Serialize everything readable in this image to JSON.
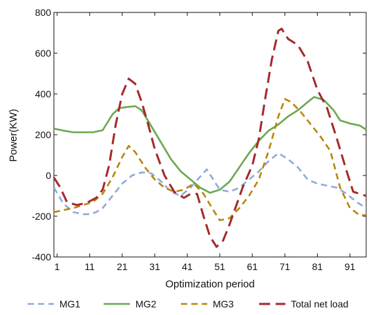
{
  "chart_data": {
    "type": "line",
    "xlabel": "Optimization period",
    "ylabel": "Power(KW)",
    "xlim": [
      0,
      96
    ],
    "ylim": [
      -400,
      800
    ],
    "x_ticks": [
      1,
      11,
      21,
      31,
      41,
      51,
      61,
      71,
      81,
      91
    ],
    "y_ticks": [
      -400,
      -200,
      0,
      200,
      400,
      600,
      800
    ],
    "grid": false,
    "legend_position": "bottom",
    "series": [
      {
        "name": "MG1",
        "color": "#8faadc",
        "dash": "dashed",
        "x": [
          0,
          3,
          6,
          9,
          11,
          13,
          15,
          18,
          21,
          24,
          27,
          30,
          33,
          36,
          39,
          42,
          45,
          47,
          49,
          51,
          54,
          57,
          60,
          63,
          66,
          69,
          72,
          75,
          78,
          81,
          84,
          87,
          90,
          93,
          96
        ],
        "y": [
          -60,
          -140,
          -180,
          -190,
          -190,
          -180,
          -160,
          -100,
          -40,
          0,
          15,
          10,
          -30,
          -80,
          -100,
          -60,
          -5,
          30,
          -20,
          -70,
          -80,
          -60,
          -20,
          20,
          70,
          110,
          80,
          40,
          -20,
          -40,
          -50,
          -60,
          -90,
          -130,
          -160
        ]
      },
      {
        "name": "MG2",
        "color": "#6aa84f",
        "dash": "solid",
        "x": [
          0,
          3,
          6,
          9,
          12,
          15,
          18,
          20,
          22,
          25,
          27,
          30,
          33,
          36,
          39,
          42,
          45,
          48,
          51,
          54,
          57,
          60,
          63,
          66,
          69,
          72,
          75,
          78,
          80,
          83,
          86,
          88,
          91,
          94,
          96
        ],
        "y": [
          230,
          220,
          212,
          212,
          212,
          222,
          300,
          330,
          335,
          340,
          320,
          240,
          160,
          80,
          20,
          -20,
          -60,
          -85,
          -70,
          -30,
          40,
          110,
          170,
          220,
          250,
          290,
          320,
          360,
          385,
          370,
          320,
          270,
          255,
          245,
          225
        ]
      },
      {
        "name": "MG3",
        "color": "#b8860b",
        "dash": "dashed",
        "x": [
          0,
          3,
          6,
          9,
          12,
          15,
          18,
          21,
          23,
          25,
          28,
          31,
          34,
          37,
          40,
          43,
          46,
          49,
          51,
          54,
          57,
          60,
          63,
          66,
          69,
          71,
          73,
          76,
          79,
          82,
          85,
          88,
          91,
          94,
          96
        ],
        "y": [
          -180,
          -170,
          -160,
          -145,
          -130,
          -90,
          -10,
          90,
          145,
          115,
          40,
          -20,
          -60,
          -80,
          -70,
          -40,
          -90,
          -170,
          -220,
          -210,
          -160,
          -100,
          -20,
          120,
          290,
          375,
          360,
          310,
          250,
          190,
          120,
          -60,
          -160,
          -195,
          -195
        ]
      },
      {
        "name": "Total net load",
        "color": "#a52a2a",
        "dash": "long-dashed",
        "x": [
          0,
          2,
          4,
          7,
          10,
          13,
          15,
          17,
          19,
          21,
          23,
          25,
          27,
          29,
          31,
          34,
          37,
          40,
          42,
          44,
          46,
          48,
          50,
          52,
          54,
          56,
          58,
          61,
          63,
          65,
          67,
          69,
          70,
          72,
          75,
          78,
          81,
          84,
          87,
          90,
          92,
          94,
          96
        ],
        "y": [
          -10,
          -60,
          -130,
          -145,
          -135,
          -110,
          -70,
          50,
          250,
          400,
          475,
          450,
          360,
          250,
          130,
          0,
          -80,
          -110,
          -90,
          -90,
          -200,
          -300,
          -350,
          -320,
          -240,
          -150,
          -60,
          50,
          180,
          380,
          570,
          710,
          720,
          670,
          640,
          560,
          420,
          330,
          180,
          20,
          -80,
          -90,
          -100
        ]
      }
    ]
  }
}
